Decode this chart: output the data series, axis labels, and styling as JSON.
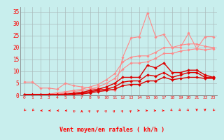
{
  "background_color": "#c8eeed",
  "grid_color": "#aabbbb",
  "xlabel": "Vent moyen/en rafales ( kh/h )",
  "x_values": [
    0,
    1,
    2,
    3,
    4,
    5,
    6,
    7,
    8,
    9,
    10,
    11,
    12,
    13,
    14,
    15,
    16,
    17,
    18,
    19,
    20,
    21,
    22,
    23
  ],
  "ylim": [
    0,
    37
  ],
  "yticks": [
    0,
    5,
    10,
    15,
    20,
    25,
    30,
    35
  ],
  "series": [
    {
      "color": "#ff8888",
      "linewidth": 0.8,
      "markersize": 1.8,
      "values": [
        5.5,
        5.5,
        3.0,
        3.0,
        2.5,
        5.0,
        4.0,
        3.5,
        3.0,
        2.5,
        2.5,
        2.0,
        16.0,
        24.0,
        24.5,
        34.5,
        24.5,
        25.5,
        20.0,
        20.0,
        26.0,
        19.5,
        24.5,
        24.5
      ]
    },
    {
      "color": "#ff8888",
      "linewidth": 0.8,
      "markersize": 1.8,
      "values": [
        0.3,
        0.3,
        0.3,
        0.5,
        1.0,
        1.5,
        2.0,
        2.5,
        3.5,
        4.5,
        6.5,
        9.0,
        14.0,
        16.0,
        16.5,
        16.5,
        18.0,
        20.0,
        20.0,
        21.0,
        21.5,
        21.5,
        20.5,
        20.0
      ]
    },
    {
      "color": "#ff8888",
      "linewidth": 0.8,
      "markersize": 1.8,
      "values": [
        0.3,
        0.3,
        0.3,
        0.3,
        0.5,
        1.0,
        1.5,
        2.0,
        2.5,
        3.5,
        5.0,
        7.0,
        11.0,
        13.5,
        13.5,
        14.0,
        15.5,
        17.5,
        17.5,
        18.5,
        19.0,
        19.5,
        19.0,
        19.5
      ]
    },
    {
      "color": "#dd0000",
      "linewidth": 1.0,
      "markersize": 2.0,
      "values": [
        0.3,
        0.3,
        0.3,
        0.3,
        0.3,
        0.5,
        0.8,
        1.2,
        2.0,
        2.5,
        3.5,
        5.0,
        7.5,
        7.5,
        7.5,
        12.5,
        11.5,
        13.5,
        9.5,
        9.5,
        10.5,
        10.5,
        8.5,
        7.5
      ]
    },
    {
      "color": "#dd0000",
      "linewidth": 1.0,
      "markersize": 2.0,
      "values": [
        0.3,
        0.3,
        0.3,
        0.3,
        0.3,
        0.3,
        0.5,
        0.8,
        1.5,
        2.0,
        2.5,
        3.5,
        5.5,
        6.0,
        6.0,
        8.5,
        8.0,
        9.5,
        7.5,
        8.5,
        9.5,
        9.5,
        7.5,
        7.5
      ]
    },
    {
      "color": "#dd0000",
      "linewidth": 1.0,
      "markersize": 2.0,
      "values": [
        0.3,
        0.3,
        0.3,
        0.3,
        0.3,
        0.3,
        0.3,
        0.5,
        1.0,
        1.5,
        2.0,
        2.5,
        4.0,
        4.5,
        4.5,
        6.0,
        6.0,
        7.5,
        6.5,
        7.0,
        7.5,
        7.5,
        7.0,
        7.0
      ]
    }
  ],
  "arrow_angles_deg": [
    -135,
    -135,
    -90,
    -90,
    -90,
    -90,
    -45,
    0,
    45,
    45,
    45,
    45,
    45,
    45,
    90,
    90,
    90,
    90,
    135,
    135,
    135,
    180,
    180,
    -135
  ]
}
